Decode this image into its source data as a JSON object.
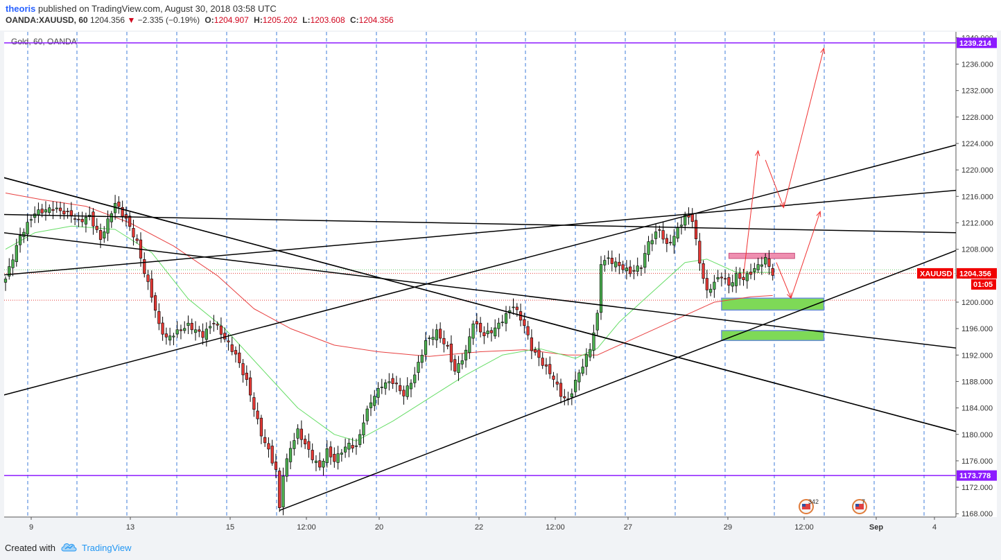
{
  "header": {
    "author": "theoris",
    "published_text": "published on TradingView.com, August 30, 2018 03:58 UTC",
    "symbol": "OANDA:XAUUSD, 60",
    "price": "1204.356",
    "change": "−2.335 (−0.19%)",
    "open_label": "O:",
    "open": "1204.907",
    "high_label": "H:",
    "high": "1205.202",
    "low_label": "L:",
    "low": "1203.608",
    "close_label": "C:",
    "close": "1204.356"
  },
  "chart_title": "Gold, 60, OANDA",
  "footer": {
    "created_with": "Created with",
    "brand": "TradingView"
  },
  "colors": {
    "up": "#4caf50",
    "down": "#e53935",
    "wick": "#000000",
    "ma_fast": "#66dd66",
    "ma_slow": "#e84040",
    "horizontal": "#8c1aff",
    "red_label": "#f00000",
    "green_zone": "#7ed957",
    "pink_zone": "#ef8fb0"
  },
  "icons": [
    "us-flag-event-icon",
    "us-flag-event-icon"
  ],
  "chart_data": {
    "type": "candlestick",
    "symbol": "XAUUSD",
    "timeframe": "60",
    "x_ticks": [
      "9",
      "13",
      "15",
      "12:00",
      "20",
      "22",
      "12:00",
      "27",
      "29",
      "12:00",
      "Sep",
      "4"
    ],
    "y_ticks": [
      1240.0,
      1236.0,
      1232.0,
      1228.0,
      1224.0,
      1220.0,
      1216.0,
      1212.0,
      1208.0,
      1204.0,
      1200.0,
      1196.0,
      1192.0,
      1188.0,
      1184.0,
      1180.0,
      1176.0,
      1172.0,
      1168.0
    ],
    "ylim": [
      1167.5,
      1241.0
    ],
    "price_labels": [
      {
        "text": "1239.214",
        "value": 1239.214
      },
      {
        "text": "1173.778",
        "value": 1173.778
      },
      {
        "text": "1204.356",
        "value": 1204.356,
        "name": "XAUUSD",
        "countdown": "01:05"
      }
    ],
    "horizontal_lines": [
      1239.214,
      1173.778
    ],
    "dotted_levels": [
      1204.356,
      1204.9,
      1200.3
    ],
    "event_badges": [
      "342",
      "7"
    ],
    "close_path": [
      [
        0,
        1203.5
      ],
      [
        4,
        1210.0
      ],
      [
        8,
        1213.5
      ],
      [
        13,
        1214.2
      ],
      [
        18,
        1213.2
      ],
      [
        20,
        1212.2
      ],
      [
        23,
        1213.0
      ],
      [
        26,
        1209.5
      ],
      [
        30,
        1215.0
      ],
      [
        33,
        1212.5
      ],
      [
        36,
        1209.0
      ],
      [
        38,
        1204.5
      ],
      [
        40,
        1201.0
      ],
      [
        42,
        1196.5
      ],
      [
        44,
        1194.5
      ],
      [
        47,
        1195.5
      ],
      [
        50,
        1196.5
      ],
      [
        54,
        1195.0
      ],
      [
        57,
        1197.0
      ],
      [
        60,
        1194.5
      ],
      [
        63,
        1192.0
      ],
      [
        66,
        1188.0
      ],
      [
        68,
        1184.0
      ],
      [
        70,
        1180.0
      ],
      [
        72,
        1177.5
      ],
      [
        74,
        1174.5
      ],
      [
        75,
        1168.8
      ],
      [
        76,
        1174.0
      ],
      [
        78,
        1178.0
      ],
      [
        80,
        1180.5
      ],
      [
        82,
        1178.5
      ],
      [
        84,
        1176.5
      ],
      [
        86,
        1175.0
      ],
      [
        88,
        1177.5
      ],
      [
        90,
        1176.0
      ],
      [
        92,
        1177.5
      ],
      [
        94,
        1178.5
      ],
      [
        96,
        1178.0
      ],
      [
        98,
        1182.0
      ],
      [
        100,
        1185.0
      ],
      [
        103,
        1187.5
      ],
      [
        106,
        1188.0
      ],
      [
        109,
        1186.0
      ],
      [
        112,
        1189.0
      ],
      [
        115,
        1194.0
      ],
      [
        118,
        1195.5
      ],
      [
        121,
        1193.0
      ],
      [
        123,
        1189.5
      ],
      [
        126,
        1192.5
      ],
      [
        128,
        1197.0
      ],
      [
        131,
        1195.0
      ],
      [
        134,
        1196.0
      ],
      [
        137,
        1198.0
      ],
      [
        139,
        1199.5
      ],
      [
        142,
        1196.5
      ],
      [
        144,
        1193.0
      ],
      [
        146,
        1191.5
      ],
      [
        148,
        1190.0
      ],
      [
        150,
        1188.5
      ],
      [
        152,
        1186.0
      ],
      [
        154,
        1185.0
      ],
      [
        156,
        1188.0
      ],
      [
        158,
        1190.5
      ],
      [
        160,
        1193.0
      ],
      [
        162,
        1198.0
      ],
      [
        163,
        1206.0
      ],
      [
        165,
        1206.5
      ],
      [
        168,
        1205.5
      ],
      [
        171,
        1204.5
      ],
      [
        174,
        1205.5
      ],
      [
        176,
        1209.0
      ],
      [
        179,
        1211.0
      ],
      [
        181,
        1208.5
      ],
      [
        183,
        1210.0
      ],
      [
        186,
        1213.0
      ],
      [
        188,
        1212.5
      ],
      [
        190,
        1206.0
      ],
      [
        192,
        1201.5
      ],
      [
        194,
        1203.0
      ],
      [
        196,
        1204.0
      ],
      [
        198,
        1202.5
      ],
      [
        200,
        1204.0
      ],
      [
        202,
        1203.5
      ],
      [
        204,
        1204.5
      ],
      [
        206,
        1205.5
      ],
      [
        208,
        1206.5
      ],
      [
        210,
        1204.3
      ]
    ],
    "ma_fast": [
      [
        0,
        1208.0
      ],
      [
        8,
        1210.5
      ],
      [
        18,
        1211.5
      ],
      [
        30,
        1211.0
      ],
      [
        40,
        1207.5
      ],
      [
        50,
        1200.5
      ],
      [
        60,
        1196.0
      ],
      [
        70,
        1190.0
      ],
      [
        80,
        1184.0
      ],
      [
        90,
        1180.0
      ],
      [
        96,
        1179.0
      ],
      [
        106,
        1182.0
      ],
      [
        116,
        1185.5
      ],
      [
        126,
        1189.0
      ],
      [
        136,
        1192.0
      ],
      [
        146,
        1193.0
      ],
      [
        156,
        1191.5
      ],
      [
        162,
        1193.0
      ],
      [
        168,
        1197.0
      ],
      [
        176,
        1201.0
      ],
      [
        186,
        1206.0
      ],
      [
        192,
        1206.5
      ],
      [
        200,
        1204.5
      ],
      [
        210,
        1204.5
      ]
    ],
    "ma_slow": [
      [
        0,
        1216.5
      ],
      [
        10,
        1215.5
      ],
      [
        22,
        1214.5
      ],
      [
        34,
        1212.0
      ],
      [
        46,
        1208.5
      ],
      [
        58,
        1204.0
      ],
      [
        68,
        1199.0
      ],
      [
        78,
        1196.0
      ],
      [
        90,
        1193.5
      ],
      [
        102,
        1192.5
      ],
      [
        116,
        1191.8
      ],
      [
        130,
        1192.5
      ],
      [
        142,
        1192.8
      ],
      [
        154,
        1192.0
      ],
      [
        162,
        1192.0
      ],
      [
        172,
        1194.5
      ],
      [
        184,
        1197.5
      ],
      [
        194,
        1200.0
      ],
      [
        204,
        1200.8
      ],
      [
        210,
        1201.0
      ]
    ],
    "trend_lines": [
      {
        "from": [
          -5,
          1219.5
        ],
        "to": [
          270,
          1179.0
        ]
      },
      {
        "from": [
          -5,
          1219.5
        ],
        "to": [
          270,
          1179.0
        ]
      },
      {
        "from": [
          -5,
          1185.3
        ],
        "to": [
          270,
          1225.2
        ]
      },
      {
        "from": [
          -5,
          1203.9
        ],
        "to": [
          270,
          1217.4
        ]
      },
      {
        "from": [
          -5,
          1210.8
        ],
        "to": [
          270,
          1192.4
        ]
      },
      {
        "from": [
          -5,
          1213.3
        ],
        "to": [
          270,
          1210.4
        ]
      },
      {
        "from": [
          75,
          1168.5
        ],
        "to": [
          270,
          1209.9
        ]
      }
    ],
    "zones": [
      {
        "x0": 196,
        "x1": 224,
        "y0": 1198.8,
        "y1": 1200.6,
        "color": "green"
      },
      {
        "x0": 196,
        "x1": 224,
        "y0": 1194.2,
        "y1": 1195.7,
        "color": "green"
      },
      {
        "x0": 198,
        "x1": 216,
        "y0": 1206.6,
        "y1": 1207.4,
        "color": "pink"
      }
    ],
    "projection_arrows": [
      {
        "from": [
          202,
          1204.0
        ],
        "to": [
          206,
          1222.9
        ]
      },
      {
        "from": [
          208,
          1221.5
        ],
        "to": [
          213,
          1214.3
        ]
      },
      {
        "from": [
          213,
          1214.3
        ],
        "to": [
          224,
          1238.4
        ]
      },
      {
        "from": [
          211,
          1206.0
        ],
        "to": [
          215,
          1200.6
        ]
      },
      {
        "from": [
          215,
          1200.6
        ],
        "to": [
          223,
          1213.7
        ]
      }
    ],
    "grid": false
  }
}
